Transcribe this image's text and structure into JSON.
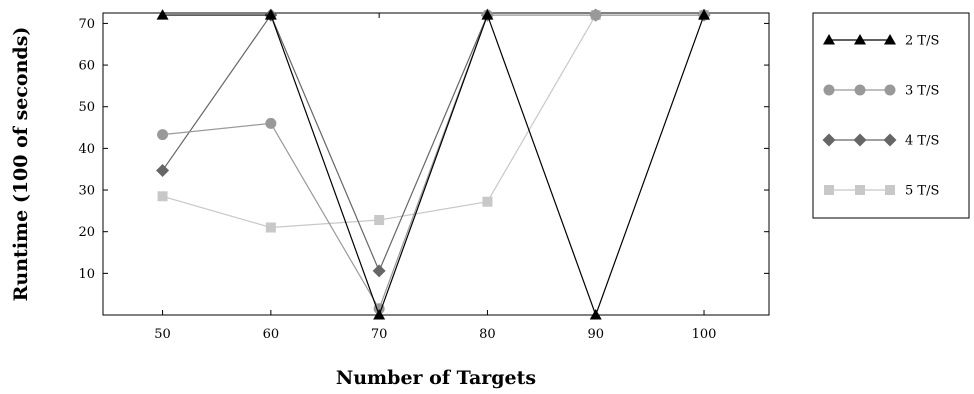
{
  "chart_data": {
    "type": "line",
    "title": "",
    "xlabel": "Number of Targets",
    "ylabel": "Runtime (100 of seconds)",
    "x": [
      50,
      60,
      70,
      80,
      90,
      100
    ],
    "x_ticks": [
      "50",
      "60",
      "70",
      "80",
      "90",
      "100"
    ],
    "xlim": [
      44.5,
      106
    ],
    "y_ticks": [
      "10",
      "20",
      "30",
      "40",
      "50",
      "60",
      "70"
    ],
    "ylim": [
      0,
      72.5
    ],
    "grid": false,
    "legend_position": "right",
    "series": [
      {
        "name": "2 T/S",
        "color": "#000000",
        "marker": "triangle",
        "values": [
          72,
          72,
          0,
          72,
          0,
          72
        ]
      },
      {
        "name": "3 T/S",
        "color": "#999999",
        "marker": "circle",
        "values": [
          43.3,
          46,
          1.5,
          72,
          72,
          72
        ]
      },
      {
        "name": "4 T/S",
        "color": "#666666",
        "marker": "diamond",
        "values": [
          34.7,
          72,
          10.6,
          72,
          72,
          72
        ]
      },
      {
        "name": "5 T/S",
        "color": "#c8c8c8",
        "marker": "square",
        "values": [
          28.5,
          21,
          22.8,
          27.2,
          72,
          72
        ]
      }
    ]
  }
}
